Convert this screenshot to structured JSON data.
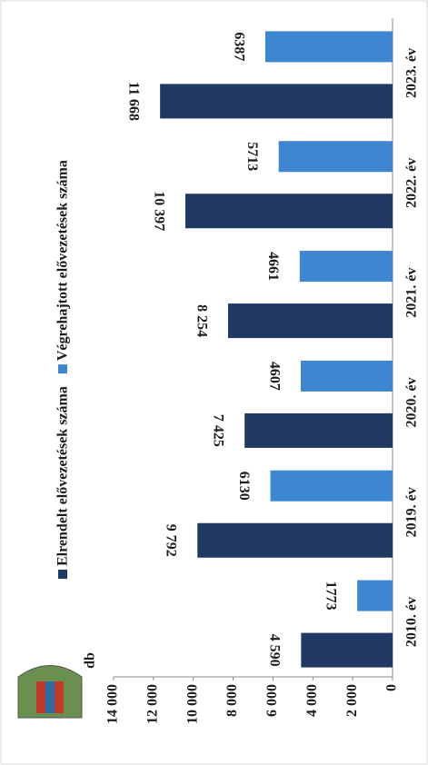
{
  "chart_data": {
    "type": "bar",
    "categories": [
      "2010. év",
      "2019. év",
      "2020. év",
      "2021. év",
      "2022. év",
      "2023. év"
    ],
    "series": [
      {
        "name": "Elrendelt elővezetések száma",
        "color": "#1f3864",
        "values": [
          4590,
          9792,
          7425,
          8254,
          10397,
          11668
        ],
        "value_labels": [
          "4 590",
          "9 792",
          "7 425",
          "8 254",
          "10 397",
          "11 668"
        ]
      },
      {
        "name": "Végrehajtott elővezetések száma",
        "color": "#3d86d0",
        "values": [
          1773,
          6130,
          4607,
          4661,
          5713,
          6387
        ]
      }
    ],
    "y_label": "db",
    "ylim": [
      0,
      14000
    ],
    "yticks": [
      0,
      {
        "value": 2000,
        "label": "2 000"
      },
      {
        "value": 4000,
        "label": "4 000"
      },
      {
        "value": 6000,
        "label": "6 000"
      },
      {
        "value": 8000,
        "label": "8 000"
      },
      {
        "value": 10000,
        "label": "10 000"
      },
      {
        "value": 12000,
        "label": "12 000"
      },
      {
        "value": 14000,
        "label": "14 000"
      }
    ],
    "legend": "top"
  }
}
